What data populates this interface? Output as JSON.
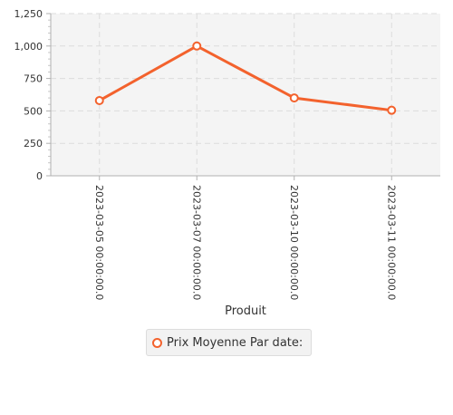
{
  "chart_data": {
    "type": "line",
    "categories": [
      "2023-03-05 00:00:00.0",
      "2023-03-07 00:00:00.0",
      "2023-03-10 00:00:00.0",
      "2023-03-11 00:00:00.0"
    ],
    "series": [
      {
        "name": "Prix Moyenne Par date:",
        "values": [
          580,
          1000,
          600,
          505
        ],
        "color": "#f3622d"
      }
    ],
    "title": "",
    "xlabel": "Produit",
    "ylabel": "",
    "ylim": [
      0,
      1250
    ],
    "yticks": [
      0,
      250,
      500,
      750,
      1000,
      1250
    ],
    "ytick_labels": [
      "0",
      "250",
      "500",
      "750",
      "1,000",
      "1,250"
    ],
    "grid": true,
    "legend_position": "bottom"
  }
}
